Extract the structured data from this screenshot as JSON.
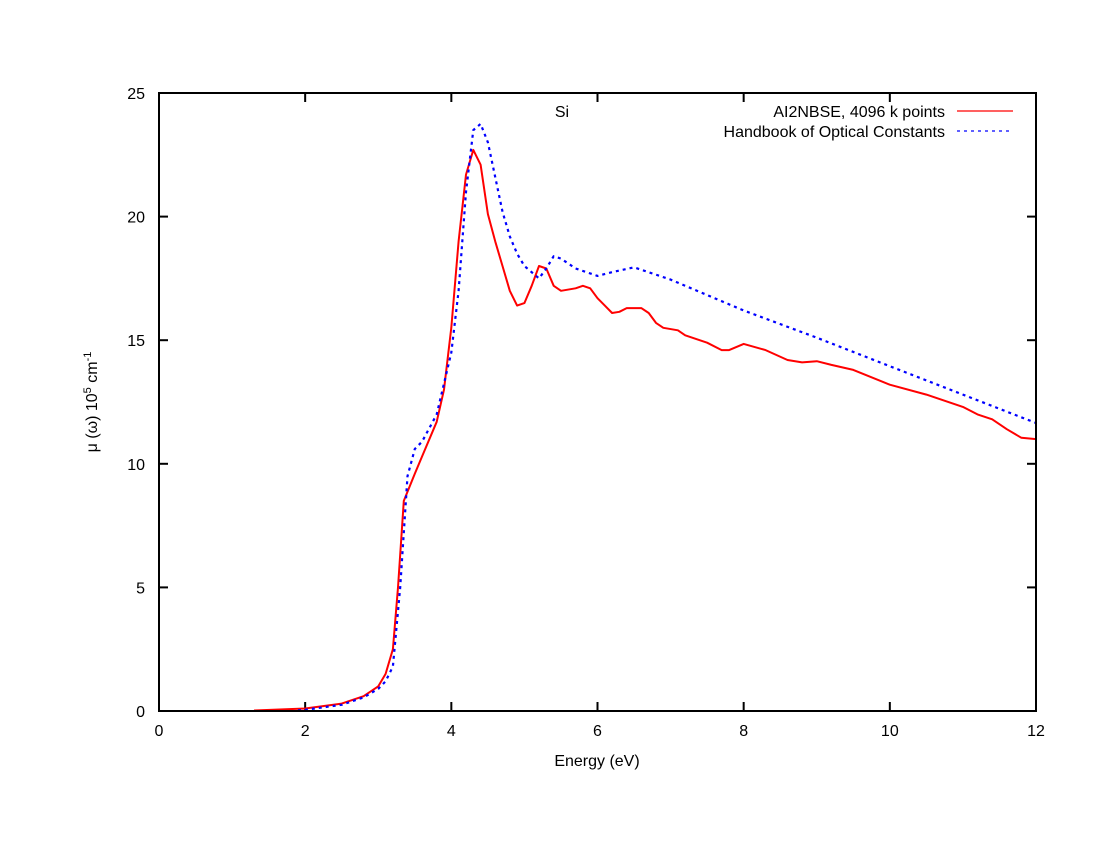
{
  "chart_data": {
    "type": "line",
    "title": "Si",
    "xlabel": "Energy (eV)",
    "ylabel": {
      "main": "μ (ω) 10",
      "sup1": "5",
      "mid": " cm",
      "sup2": "-1"
    },
    "xlim": [
      0,
      12
    ],
    "ylim": [
      0,
      25
    ],
    "xticks": [
      0,
      2,
      4,
      6,
      8,
      10,
      12
    ],
    "yticks": [
      0,
      5,
      10,
      15,
      20,
      25
    ],
    "grid": false,
    "legend_position": "top-right",
    "series": [
      {
        "name": "AI2NBSE, 4096 k points",
        "color": "#ff0000",
        "dash": "solid",
        "x": [
          1.3,
          2.0,
          2.5,
          2.8,
          3.0,
          3.1,
          3.2,
          3.27,
          3.35,
          3.5,
          3.6,
          3.8,
          3.9,
          4.0,
          4.1,
          4.2,
          4.3,
          4.4,
          4.5,
          4.6,
          4.7,
          4.8,
          4.9,
          5.0,
          5.1,
          5.2,
          5.3,
          5.4,
          5.5,
          5.7,
          5.8,
          5.9,
          6.0,
          6.1,
          6.2,
          6.3,
          6.4,
          6.6,
          6.7,
          6.8,
          6.9,
          7.1,
          7.2,
          7.5,
          7.7,
          7.8,
          8.0,
          8.3,
          8.6,
          8.8,
          9.0,
          9.2,
          9.5,
          10.0,
          10.5,
          11.0,
          11.2,
          11.4,
          11.6,
          11.8,
          12.0
        ],
        "y": [
          0.02,
          0.1,
          0.3,
          0.6,
          1.0,
          1.5,
          2.5,
          5.0,
          8.5,
          9.6,
          10.3,
          11.7,
          13.0,
          15.5,
          19.0,
          21.7,
          22.7,
          22.1,
          20.1,
          19.0,
          18.0,
          17.0,
          16.4,
          16.5,
          17.2,
          18.0,
          17.9,
          17.2,
          17.0,
          17.1,
          17.2,
          17.1,
          16.7,
          16.4,
          16.1,
          16.15,
          16.3,
          16.3,
          16.1,
          15.7,
          15.5,
          15.4,
          15.2,
          14.9,
          14.6,
          14.6,
          14.85,
          14.6,
          14.2,
          14.1,
          14.15,
          14.0,
          13.8,
          13.2,
          12.8,
          12.3,
          12.0,
          11.8,
          11.4,
          11.05,
          11.0
        ]
      },
      {
        "name": "Handbook of Optical Constants",
        "color": "#0000ff",
        "dash": "dotted",
        "x": [
          1.9,
          2.0,
          2.5,
          2.8,
          3.0,
          3.1,
          3.2,
          3.3,
          3.4,
          3.5,
          3.6,
          3.8,
          4.0,
          4.1,
          4.2,
          4.3,
          4.4,
          4.5,
          4.6,
          4.7,
          4.8,
          4.9,
          5.0,
          5.2,
          5.3,
          5.4,
          5.5,
          5.7,
          6.0,
          6.2,
          6.5,
          7.0,
          8.0,
          9.0,
          10.0,
          11.0,
          12.0
        ],
        "y": [
          0.03,
          0.05,
          0.25,
          0.55,
          0.9,
          1.2,
          1.8,
          5.0,
          9.5,
          10.6,
          10.9,
          12.0,
          14.5,
          17.0,
          21.0,
          23.5,
          23.75,
          23.0,
          21.6,
          20.2,
          19.2,
          18.5,
          18.0,
          17.5,
          17.9,
          18.4,
          18.3,
          17.9,
          17.6,
          17.75,
          17.95,
          17.45,
          16.2,
          15.1,
          13.95,
          12.8,
          11.65
        ]
      }
    ]
  }
}
